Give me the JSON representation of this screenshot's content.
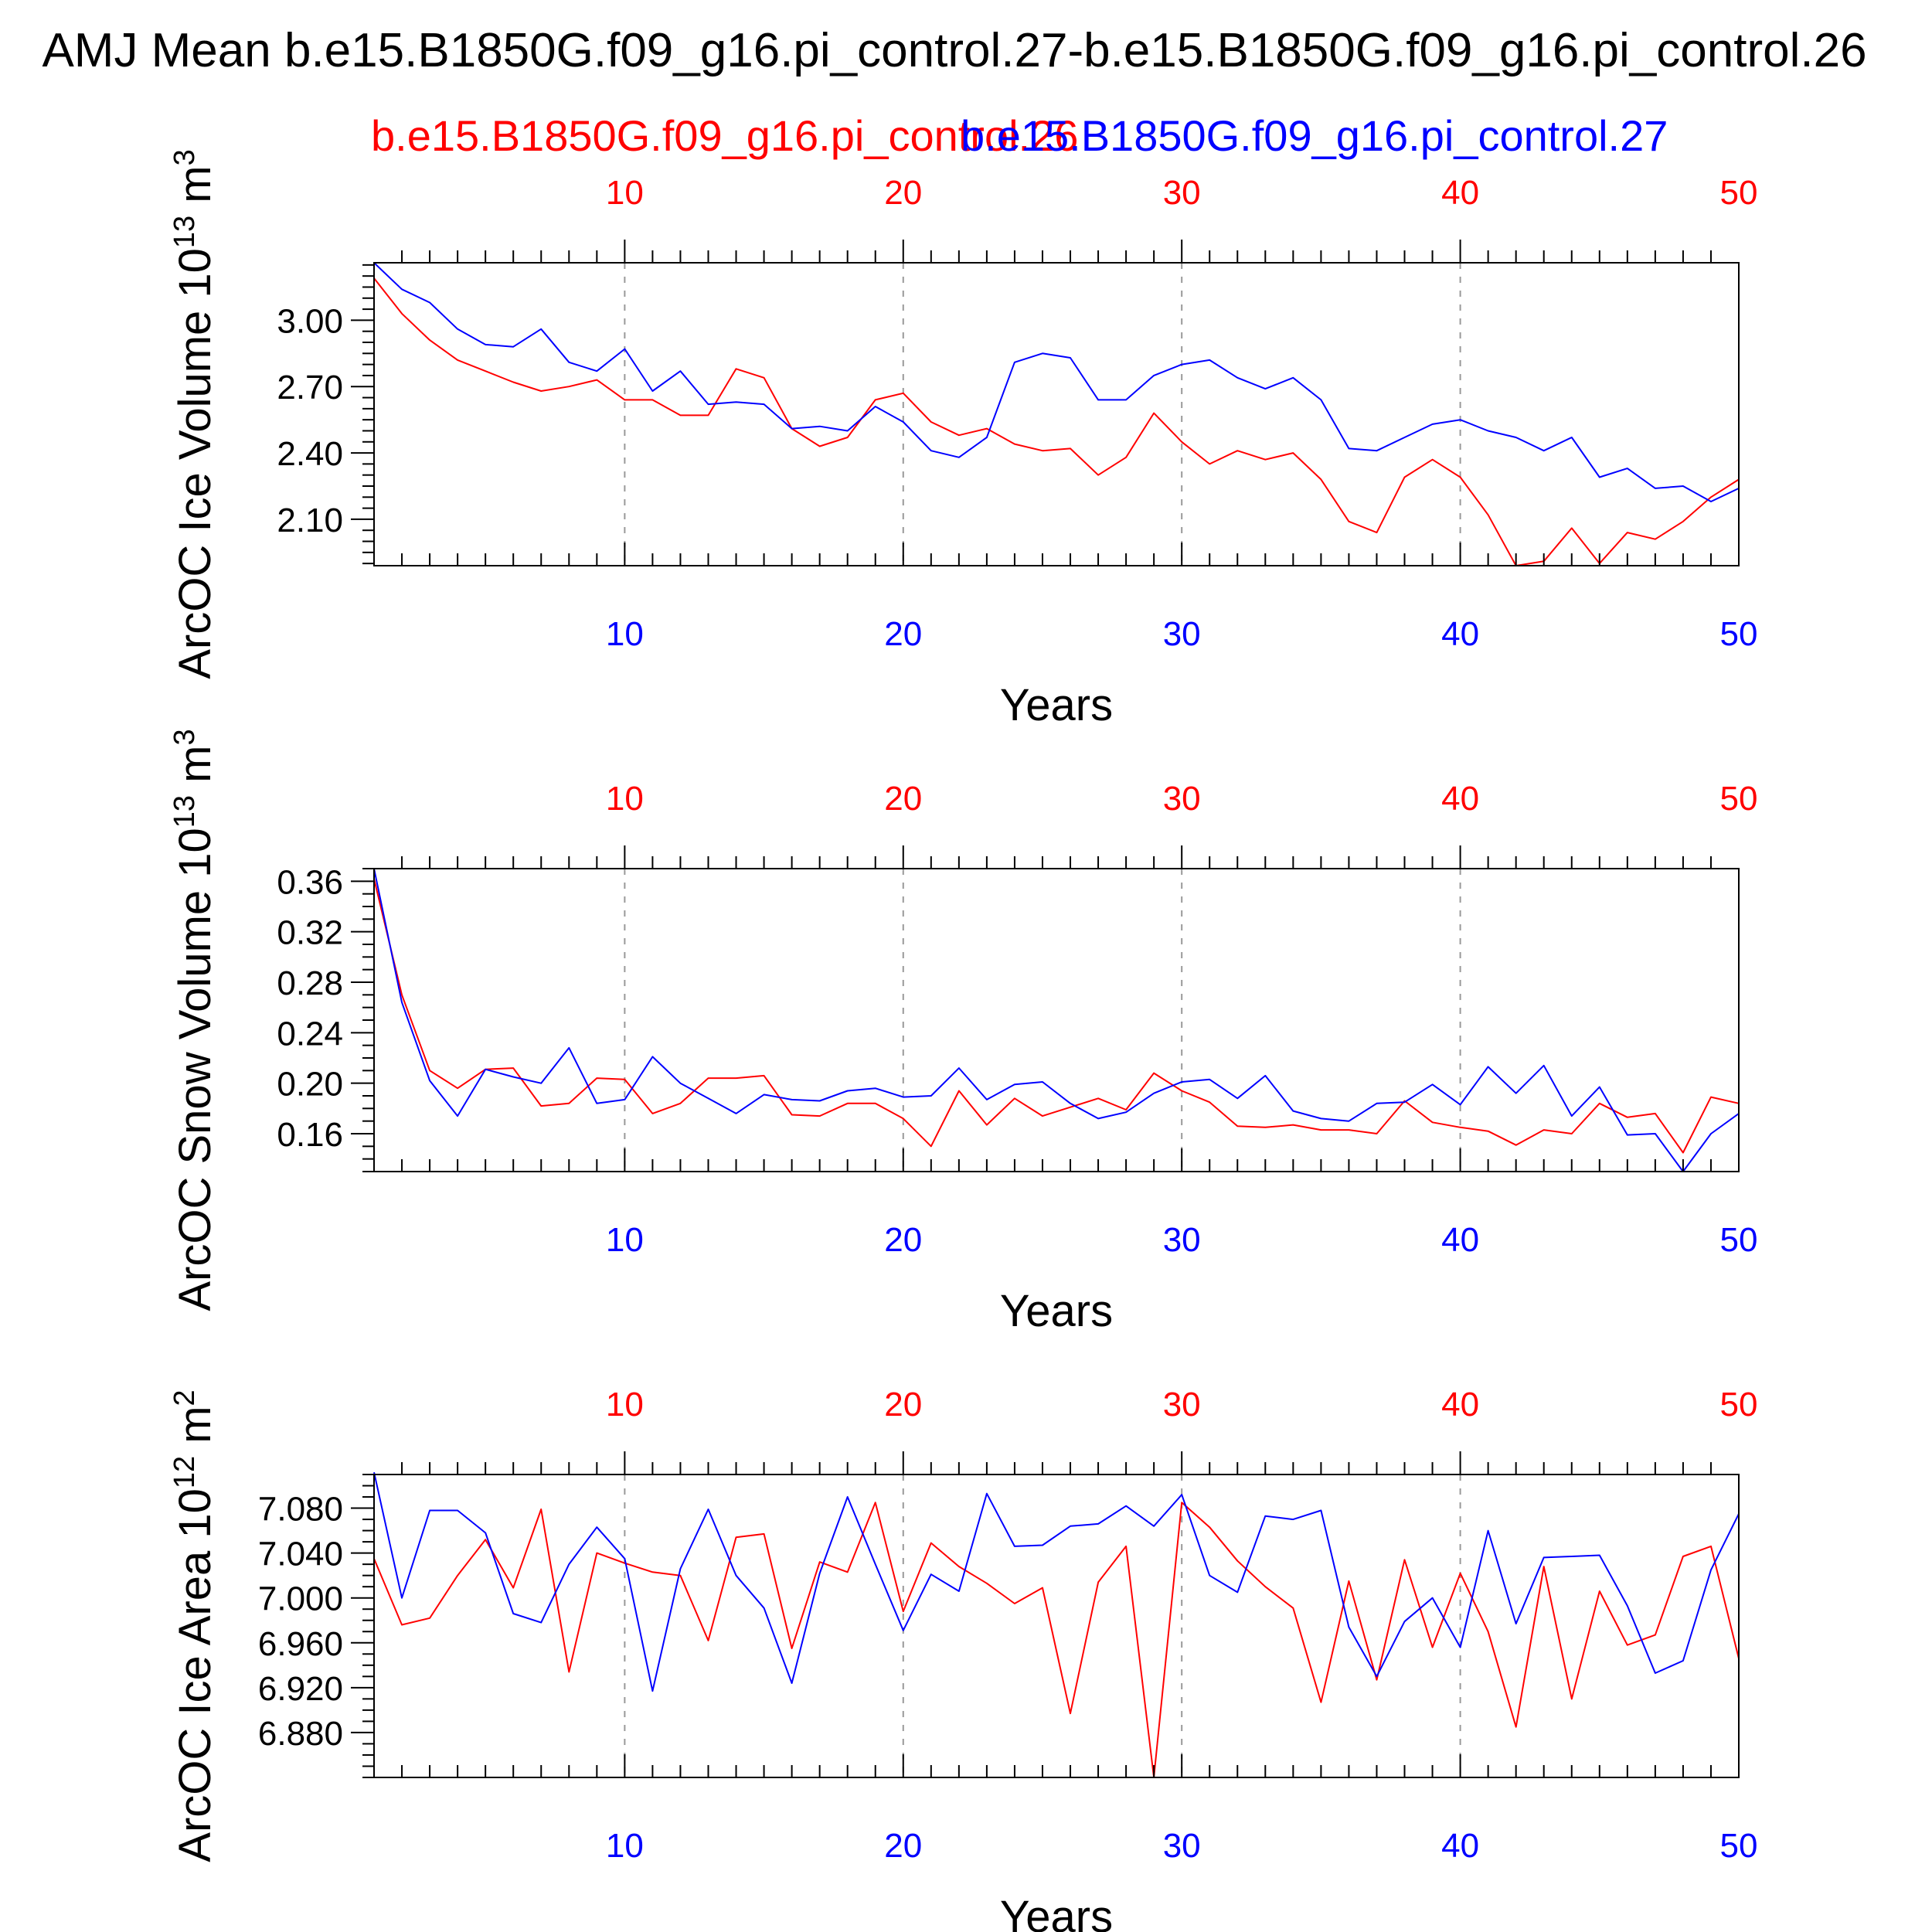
{
  "page": {
    "title": "AMJ Mean b.e15.B1850G.f09_g16.pi_control.27-b.e15.B1850G.f09_g16.pi_control.26",
    "case_a_label": "b.e15.B1850G.f09_g16.pi_control.26",
    "case_b_label": "b.e15.B1850G.f09_g16.pi_control.27"
  },
  "colors": {
    "case_a": "#ff0000",
    "case_b": "#0000ff",
    "axis": "#000000",
    "grid": "#999999"
  },
  "chart_data": [
    {
      "type": "line",
      "ylabel": "ArcOC Ice Volume 10",
      "ylabel_exp": "13",
      "ylabel_unit": "m",
      "ylabel_unit_exp": "3",
      "xlabel": "Years",
      "xlim": [
        1,
        50
      ],
      "ylim": [
        1.89,
        3.26
      ],
      "yticks": [
        2.1,
        2.4,
        2.7,
        3.0
      ],
      "ytick_labels": [
        "2.10",
        "2.40",
        "2.70",
        "3.00"
      ],
      "yminor": [
        1.9,
        1.95,
        2.0,
        2.05,
        2.15,
        2.2,
        2.25,
        2.3,
        2.35,
        2.45,
        2.5,
        2.55,
        2.6,
        2.65,
        2.75,
        2.8,
        2.85,
        2.9,
        2.95,
        3.05,
        3.1,
        3.15,
        3.2,
        3.25
      ],
      "xticks": [
        10,
        20,
        30,
        40,
        50
      ],
      "xtick_labels": [
        "10",
        "20",
        "30",
        "40",
        "50"
      ],
      "x_grid_dashed": true,
      "x": [
        1,
        2,
        3,
        4,
        5,
        6,
        7,
        8,
        9,
        10,
        11,
        12,
        13,
        14,
        15,
        16,
        17,
        18,
        19,
        20,
        21,
        22,
        23,
        24,
        25,
        26,
        27,
        28,
        29,
        30,
        31,
        32,
        33,
        34,
        35,
        36,
        37,
        38,
        39,
        40,
        41,
        42,
        43,
        44,
        45,
        46,
        47,
        48,
        49,
        50
      ],
      "series": [
        {
          "name": "b.e15.B1850G.f09_g16.pi_control.26",
          "color": "#ff0000",
          "values": [
            3.19,
            3.03,
            2.91,
            2.82,
            2.77,
            2.72,
            2.68,
            2.7,
            2.73,
            2.64,
            2.64,
            2.57,
            2.57,
            2.78,
            2.74,
            2.51,
            2.43,
            2.47,
            2.64,
            2.67,
            2.54,
            2.48,
            2.51,
            2.44,
            2.41,
            2.42,
            2.3,
            2.38,
            2.58,
            2.45,
            2.35,
            2.41,
            2.37,
            2.4,
            2.28,
            2.09,
            2.04,
            2.29,
            2.37,
            2.29,
            2.12,
            1.89,
            1.91,
            2.06,
            1.9,
            2.04,
            2.01,
            2.09,
            2.2,
            2.28
          ]
        },
        {
          "name": "b.e15.B1850G.f09_g16.pi_control.27",
          "color": "#0000ff",
          "values": [
            3.26,
            3.14,
            3.08,
            2.96,
            2.89,
            2.88,
            2.96,
            2.81,
            2.77,
            2.87,
            2.68,
            2.77,
            2.62,
            2.63,
            2.62,
            2.51,
            2.52,
            2.5,
            2.61,
            2.54,
            2.41,
            2.38,
            2.47,
            2.81,
            2.85,
            2.83,
            2.64,
            2.64,
            2.75,
            2.8,
            2.82,
            2.74,
            2.69,
            2.74,
            2.64,
            2.42,
            2.41,
            2.47,
            2.53,
            2.55,
            2.5,
            2.47,
            2.41,
            2.47,
            2.29,
            2.33,
            2.24,
            2.25,
            2.18,
            2.24
          ]
        }
      ]
    },
    {
      "type": "line",
      "ylabel": "ArcOC Snow Volume 10",
      "ylabel_exp": "13",
      "ylabel_unit": "m",
      "ylabel_unit_exp": "3",
      "xlabel": "Years",
      "xlim": [
        1,
        50
      ],
      "ylim": [
        0.13,
        0.37
      ],
      "yticks": [
        0.16,
        0.2,
        0.24,
        0.28,
        0.32,
        0.36
      ],
      "ytick_labels": [
        "0.16",
        "0.20",
        "0.24",
        "0.28",
        "0.32",
        "0.36"
      ],
      "yminor": [
        0.13,
        0.14,
        0.15,
        0.17,
        0.18,
        0.19,
        0.21,
        0.22,
        0.23,
        0.25,
        0.26,
        0.27,
        0.29,
        0.3,
        0.31,
        0.33,
        0.34,
        0.35,
        0.37
      ],
      "xticks": [
        10,
        20,
        30,
        40,
        50
      ],
      "xtick_labels": [
        "10",
        "20",
        "30",
        "40",
        "50"
      ],
      "x_grid_dashed": true,
      "x": [
        1,
        2,
        3,
        4,
        5,
        6,
        7,
        8,
        9,
        10,
        11,
        12,
        13,
        14,
        15,
        16,
        17,
        18,
        19,
        20,
        21,
        22,
        23,
        24,
        25,
        26,
        27,
        28,
        29,
        30,
        31,
        32,
        33,
        34,
        35,
        36,
        37,
        38,
        39,
        40,
        41,
        42,
        43,
        44,
        45,
        46,
        47,
        48,
        49,
        50
      ],
      "series": [
        {
          "name": "b.e15.B1850G.f09_g16.pi_control.26",
          "color": "#ff0000",
          "values": [
            0.362,
            0.27,
            0.21,
            0.196,
            0.211,
            0.212,
            0.182,
            0.184,
            0.204,
            0.203,
            0.176,
            0.184,
            0.204,
            0.204,
            0.206,
            0.175,
            0.174,
            0.184,
            0.184,
            0.172,
            0.15,
            0.194,
            0.167,
            0.188,
            0.174,
            0.181,
            0.188,
            0.179,
            0.208,
            0.194,
            0.185,
            0.166,
            0.165,
            0.167,
            0.163,
            0.163,
            0.16,
            0.186,
            0.169,
            0.165,
            0.162,
            0.151,
            0.163,
            0.16,
            0.184,
            0.173,
            0.176,
            0.145,
            0.189,
            0.184
          ]
        },
        {
          "name": "b.e15.B1850G.f09_g16.pi_control.27",
          "color": "#0000ff",
          "values": [
            0.37,
            0.264,
            0.202,
            0.174,
            0.211,
            0.205,
            0.2,
            0.228,
            0.184,
            0.187,
            0.221,
            0.2,
            0.188,
            0.176,
            0.191,
            0.187,
            0.186,
            0.194,
            0.196,
            0.189,
            0.19,
            0.212,
            0.187,
            0.199,
            0.201,
            0.184,
            0.172,
            0.177,
            0.192,
            0.201,
            0.203,
            0.188,
            0.206,
            0.178,
            0.172,
            0.17,
            0.184,
            0.185,
            0.199,
            0.183,
            0.213,
            0.192,
            0.214,
            0.174,
            0.197,
            0.159,
            0.16,
            0.13,
            0.16,
            0.176
          ]
        }
      ]
    },
    {
      "type": "line",
      "ylabel": "ArcOC Ice Area 10",
      "ylabel_exp": "12",
      "ylabel_unit": "m",
      "ylabel_unit_exp": "2",
      "xlabel": "Years",
      "xlim": [
        1,
        50
      ],
      "ylim": [
        6.84,
        7.11
      ],
      "yticks": [
        6.88,
        6.92,
        6.96,
        7.0,
        7.04,
        7.08
      ],
      "ytick_labels": [
        "6.880",
        "6.920",
        "6.960",
        "7.000",
        "7.040",
        "7.080"
      ],
      "yminor": [
        6.84,
        6.85,
        6.86,
        6.87,
        6.89,
        6.9,
        6.91,
        6.93,
        6.94,
        6.95,
        6.97,
        6.98,
        6.99,
        7.01,
        7.02,
        7.03,
        7.05,
        7.06,
        7.07,
        7.09,
        7.1,
        7.11
      ],
      "xticks": [
        10,
        20,
        30,
        40,
        50
      ],
      "xtick_labels": [
        "10",
        "20",
        "30",
        "40",
        "50"
      ],
      "x_grid_dashed": true,
      "x": [
        1,
        2,
        3,
        4,
        5,
        6,
        7,
        8,
        9,
        10,
        11,
        12,
        13,
        14,
        15,
        16,
        17,
        18,
        19,
        20,
        21,
        22,
        23,
        24,
        25,
        26,
        27,
        28,
        29,
        30,
        31,
        32,
        33,
        34,
        35,
        36,
        37,
        38,
        39,
        40,
        41,
        42,
        43,
        44,
        45,
        46,
        47,
        48,
        49,
        50
      ],
      "series": [
        {
          "name": "b.e15.B1850G.f09_g16.pi_control.26",
          "color": "#ff0000",
          "values": [
            7.035,
            6.976,
            6.982,
            7.02,
            7.052,
            7.009,
            7.079,
            6.934,
            7.04,
            7.031,
            7.023,
            7.02,
            6.962,
            7.054,
            7.057,
            6.955,
            7.032,
            7.023,
            7.085,
            6.988,
            7.049,
            7.028,
            7.013,
            6.995,
            7.009,
            6.897,
            7.014,
            7.046,
            6.84,
            7.085,
            7.063,
            7.033,
            7.01,
            6.991,
            6.907,
            7.015,
            6.927,
            7.034,
            6.956,
            7.022,
            6.97,
            6.885,
            7.028,
            6.91,
            7.006,
            6.958,
            6.967,
            7.037,
            7.046,
            6.946
          ]
        },
        {
          "name": "b.e15.B1850G.f09_g16.pi_control.27",
          "color": "#0000ff",
          "values": [
            7.112,
            7.0,
            7.078,
            7.078,
            7.058,
            6.986,
            6.978,
            7.03,
            7.063,
            7.035,
            6.917,
            7.026,
            7.079,
            7.02,
            6.991,
            6.924,
            7.022,
            7.09,
            7.03,
            6.971,
            7.021,
            7.006,
            7.093,
            7.046,
            7.047,
            7.064,
            7.066,
            7.082,
            7.064,
            7.092,
            7.02,
            7.005,
            7.073,
            7.07,
            7.078,
            6.974,
            6.93,
            6.979,
            7.0,
            6.956,
            7.06,
            6.977,
            7.036,
            7.037,
            7.038,
            6.993,
            6.933,
            6.944,
            7.025,
            7.075
          ]
        }
      ]
    }
  ]
}
